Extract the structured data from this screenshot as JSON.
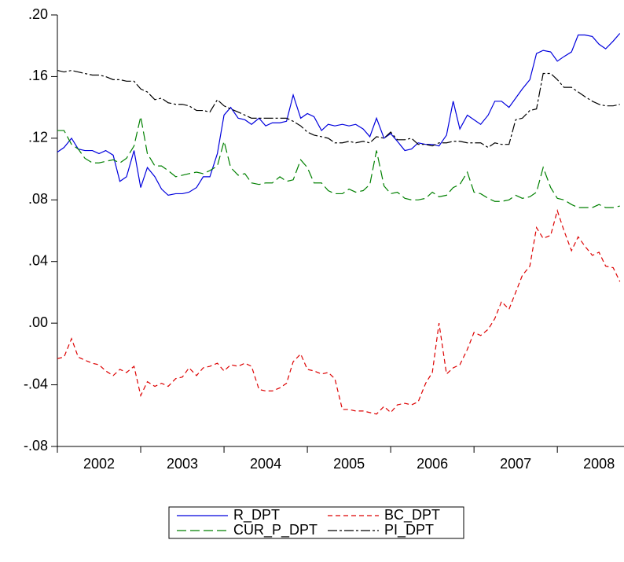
{
  "chart_data": {
    "type": "line",
    "x": [
      2002.0,
      2002.08,
      2002.17,
      2002.25,
      2002.33,
      2002.42,
      2002.5,
      2002.58,
      2002.67,
      2002.75,
      2002.83,
      2002.92,
      2003.0,
      2003.08,
      2003.17,
      2003.25,
      2003.33,
      2003.42,
      2003.5,
      2003.58,
      2003.67,
      2003.75,
      2003.83,
      2003.92,
      2004.0,
      2004.08,
      2004.17,
      2004.25,
      2004.33,
      2004.42,
      2004.5,
      2004.58,
      2004.67,
      2004.75,
      2004.83,
      2004.92,
      2005.0,
      2005.08,
      2005.17,
      2005.25,
      2005.33,
      2005.42,
      2005.5,
      2005.58,
      2005.67,
      2005.75,
      2005.83,
      2005.92,
      2006.0,
      2006.08,
      2006.17,
      2006.25,
      2006.33,
      2006.42,
      2006.5,
      2006.58,
      2006.67,
      2006.75,
      2006.83,
      2006.92,
      2007.0,
      2007.08,
      2007.17,
      2007.25,
      2007.33,
      2007.42,
      2007.5,
      2007.58,
      2007.67,
      2007.75,
      2007.83,
      2007.92,
      2008.0,
      2008.08,
      2008.17,
      2008.25,
      2008.33,
      2008.42,
      2008.5,
      2008.58,
      2008.67,
      2008.75
    ],
    "series": [
      {
        "name": "R_DPT",
        "color": "#0000dd",
        "dash": "none",
        "values": [
          0.111,
          0.114,
          0.12,
          0.113,
          0.112,
          0.112,
          0.11,
          0.112,
          0.109,
          0.092,
          0.095,
          0.112,
          0.088,
          0.101,
          0.095,
          0.087,
          0.083,
          0.084,
          0.084,
          0.085,
          0.088,
          0.095,
          0.095,
          0.11,
          0.135,
          0.14,
          0.133,
          0.132,
          0.129,
          0.133,
          0.128,
          0.13,
          0.13,
          0.131,
          0.148,
          0.133,
          0.136,
          0.134,
          0.125,
          0.129,
          0.128,
          0.129,
          0.128,
          0.129,
          0.126,
          0.121,
          0.133,
          0.12,
          0.123,
          0.118,
          0.112,
          0.113,
          0.117,
          0.116,
          0.116,
          0.115,
          0.122,
          0.144,
          0.126,
          0.135,
          0.132,
          0.129,
          0.135,
          0.144,
          0.144,
          0.14,
          0.146,
          0.152,
          0.158,
          0.175,
          0.177,
          0.176,
          0.17,
          0.173,
          0.176,
          0.187,
          0.187,
          0.186,
          0.181,
          0.178,
          0.183,
          0.188
        ]
      },
      {
        "name": "BC_DPT",
        "color": "#dd0000",
        "dash": "6 4",
        "values": [
          -0.023,
          -0.022,
          -0.01,
          -0.022,
          -0.024,
          -0.026,
          -0.027,
          -0.031,
          -0.034,
          -0.03,
          -0.032,
          -0.028,
          -0.047,
          -0.038,
          -0.041,
          -0.039,
          -0.041,
          -0.036,
          -0.035,
          -0.029,
          -0.034,
          -0.029,
          -0.028,
          -0.026,
          -0.031,
          -0.027,
          -0.028,
          -0.026,
          -0.028,
          -0.043,
          -0.044,
          -0.044,
          -0.042,
          -0.039,
          -0.025,
          -0.02,
          -0.03,
          -0.031,
          -0.033,
          -0.032,
          -0.036,
          -0.056,
          -0.056,
          -0.057,
          -0.057,
          -0.058,
          -0.059,
          -0.054,
          -0.058,
          -0.053,
          -0.052,
          -0.053,
          -0.051,
          -0.039,
          -0.032,
          0.0,
          -0.033,
          -0.029,
          -0.027,
          -0.017,
          -0.006,
          -0.008,
          -0.004,
          0.003,
          0.014,
          0.009,
          0.02,
          0.031,
          0.037,
          0.062,
          0.055,
          0.057,
          0.073,
          0.06,
          0.047,
          0.056,
          0.05,
          0.044,
          0.046,
          0.037,
          0.036,
          0.027
        ]
      },
      {
        "name": "CUR_P_DPT",
        "color": "#008000",
        "dash": "12 5",
        "values": [
          0.125,
          0.125,
          0.116,
          0.113,
          0.107,
          0.104,
          0.104,
          0.105,
          0.106,
          0.104,
          0.107,
          0.115,
          0.134,
          0.11,
          0.102,
          0.102,
          0.099,
          0.095,
          0.096,
          0.097,
          0.098,
          0.097,
          0.099,
          0.102,
          0.118,
          0.101,
          0.096,
          0.097,
          0.091,
          0.09,
          0.091,
          0.091,
          0.095,
          0.092,
          0.093,
          0.106,
          0.101,
          0.091,
          0.091,
          0.086,
          0.084,
          0.084,
          0.087,
          0.085,
          0.086,
          0.09,
          0.112,
          0.089,
          0.084,
          0.085,
          0.081,
          0.08,
          0.08,
          0.081,
          0.085,
          0.082,
          0.083,
          0.088,
          0.09,
          0.098,
          0.085,
          0.084,
          0.081,
          0.079,
          0.079,
          0.08,
          0.083,
          0.081,
          0.082,
          0.085,
          0.101,
          0.088,
          0.081,
          0.08,
          0.077,
          0.075,
          0.075,
          0.075,
          0.077,
          0.075,
          0.075,
          0.076
        ]
      },
      {
        "name": "PI_DPT",
        "color": "#000000",
        "dash": "12 3 3 3",
        "values": [
          0.164,
          0.163,
          0.164,
          0.163,
          0.162,
          0.161,
          0.161,
          0.16,
          0.158,
          0.158,
          0.157,
          0.157,
          0.152,
          0.15,
          0.145,
          0.146,
          0.143,
          0.142,
          0.142,
          0.141,
          0.138,
          0.138,
          0.137,
          0.145,
          0.141,
          0.139,
          0.137,
          0.135,
          0.133,
          0.133,
          0.133,
          0.133,
          0.133,
          0.133,
          0.131,
          0.128,
          0.124,
          0.122,
          0.121,
          0.12,
          0.117,
          0.117,
          0.118,
          0.117,
          0.118,
          0.117,
          0.121,
          0.12,
          0.124,
          0.119,
          0.119,
          0.12,
          0.116,
          0.116,
          0.115,
          0.117,
          0.117,
          0.118,
          0.118,
          0.117,
          0.117,
          0.117,
          0.114,
          0.117,
          0.116,
          0.116,
          0.132,
          0.133,
          0.138,
          0.139,
          0.162,
          0.162,
          0.158,
          0.153,
          0.153,
          0.15,
          0.147,
          0.144,
          0.142,
          0.141,
          0.141,
          0.142
        ]
      }
    ],
    "xlim": [
      2002,
      2008.8
    ],
    "xticks": [
      2002,
      2003,
      2004,
      2005,
      2006,
      2007,
      2008
    ],
    "ylim": [
      -0.08,
      0.2
    ],
    "yticks": [
      {
        "value": -0.08,
        "label": "-.08"
      },
      {
        "value": -0.04,
        "label": "-.04"
      },
      {
        "value": 0,
        "label": ".00"
      },
      {
        "value": 0.04,
        "label": ".04"
      },
      {
        "value": 0.08,
        "label": ".08"
      },
      {
        "value": 0.12,
        "label": ".12"
      },
      {
        "value": 0.16,
        "label": ".16"
      },
      {
        "value": 0.2,
        "label": ".20"
      }
    ],
    "grid": false
  }
}
